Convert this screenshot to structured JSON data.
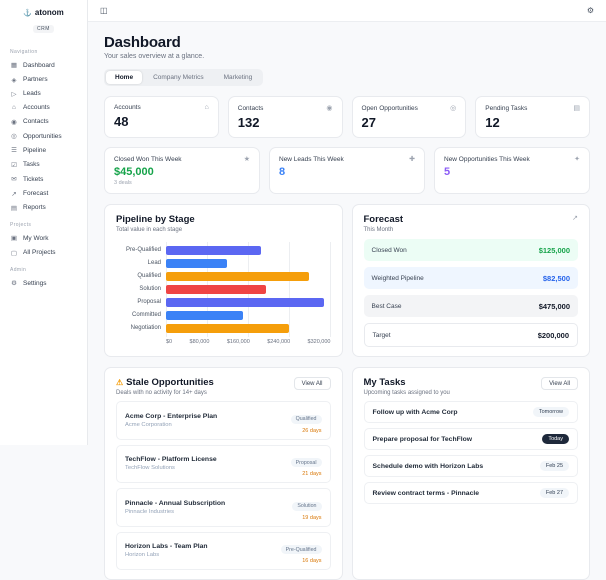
{
  "app": {
    "logo_text": "atonom",
    "logo_badge": "CRM",
    "logo_glyph": "⚓"
  },
  "topbar": {
    "toggle_glyph": "◫",
    "settings_glyph": "⚙"
  },
  "sidebar": {
    "sections": [
      {
        "label": "Navigation",
        "items": [
          {
            "label": "Dashboard",
            "icon": "dashboard-icon",
            "glyph": "▦"
          },
          {
            "label": "Partners",
            "icon": "partners-icon",
            "glyph": "◈"
          },
          {
            "label": "Leads",
            "icon": "leads-icon",
            "glyph": "▷"
          },
          {
            "label": "Accounts",
            "icon": "accounts-icon",
            "glyph": "⌂"
          },
          {
            "label": "Contacts",
            "icon": "contacts-icon",
            "glyph": "◉"
          },
          {
            "label": "Opportunities",
            "icon": "opportunities-icon",
            "glyph": "◎"
          },
          {
            "label": "Pipeline",
            "icon": "pipeline-icon",
            "glyph": "☰"
          },
          {
            "label": "Tasks",
            "icon": "tasks-icon",
            "glyph": "☑"
          },
          {
            "label": "Tickets",
            "icon": "tickets-icon",
            "glyph": "✉"
          },
          {
            "label": "Forecast",
            "icon": "forecast-icon",
            "glyph": "↗"
          },
          {
            "label": "Reports",
            "icon": "reports-icon",
            "glyph": "▤"
          }
        ]
      },
      {
        "label": "Projects",
        "items": [
          {
            "label": "My Work",
            "icon": "my-work-icon",
            "glyph": "▣"
          },
          {
            "label": "All Projects",
            "icon": "all-projects-icon",
            "glyph": "▢"
          }
        ]
      },
      {
        "label": "Admin",
        "items": [
          {
            "label": "Settings",
            "icon": "settings-icon",
            "glyph": "⚙"
          }
        ]
      }
    ]
  },
  "header": {
    "title": "Dashboard",
    "subtitle": "Your sales overview at a glance."
  },
  "tabs": [
    {
      "label": "Home",
      "active": true
    },
    {
      "label": "Company Metrics",
      "active": false
    },
    {
      "label": "Marketing",
      "active": false
    }
  ],
  "stats": [
    {
      "label": "Accounts",
      "value": "48",
      "icon": "building-icon",
      "glyph": "⌂"
    },
    {
      "label": "Contacts",
      "value": "132",
      "icon": "users-icon",
      "glyph": "◉"
    },
    {
      "label": "Open Opportunities",
      "value": "27",
      "icon": "target-icon",
      "glyph": "◎"
    },
    {
      "label": "Pending Tasks",
      "value": "12",
      "icon": "clipboard-icon",
      "glyph": "▤"
    }
  ],
  "week_stats": [
    {
      "label": "Closed Won This Week",
      "value": "$45,000",
      "note": "3 deals",
      "color": "#16a34a",
      "icon": "trophy-icon",
      "glyph": "★"
    },
    {
      "label": "New Leads This Week",
      "value": "8",
      "note": "",
      "color": "#3b82f6",
      "icon": "user-plus-icon",
      "glyph": "✚"
    },
    {
      "label": "New Opportunities This Week",
      "value": "5",
      "note": "",
      "color": "#8b5cf6",
      "icon": "sparkle-icon",
      "glyph": "✦"
    }
  ],
  "chart_data": {
    "type": "bar",
    "orientation": "horizontal",
    "title": "Pipeline by Stage",
    "subtitle": "Total value in each stage",
    "categories": [
      "Pre-Qualified",
      "Lead",
      "Qualified",
      "Solution",
      "Proposal",
      "Committed",
      "Negotiation"
    ],
    "values": [
      185000,
      120000,
      280000,
      195000,
      310000,
      150000,
      240000
    ],
    "colors": [
      "#5b67f2",
      "#3b82f6",
      "#f59e0b",
      "#ef4444",
      "#5b67f2",
      "#3b82f6",
      "#f59e0b"
    ],
    "x_ticks": [
      "$0",
      "$80,000",
      "$160,000",
      "$240,000",
      "$320,000"
    ],
    "xlim": [
      0,
      320000
    ],
    "grid": true,
    "legend": false
  },
  "forecast": {
    "title": "Forecast",
    "subtitle": "This Month",
    "icon": "trending-up-icon",
    "glyph": "↗",
    "rows": [
      {
        "label": "Closed Won",
        "value": "$125,000",
        "style": "green"
      },
      {
        "label": "Weighted Pipeline",
        "value": "$82,500",
        "style": "blue"
      },
      {
        "label": "Best Case",
        "value": "$475,000",
        "style": "gray"
      },
      {
        "label": "Target",
        "value": "$200,000",
        "style": "plain"
      }
    ]
  },
  "stale": {
    "title": "Stale Opportunities",
    "subtitle": "Deals with no activity for 14+ days",
    "view_all": "View All",
    "items": [
      {
        "title": "Acme Corp - Enterprise Plan",
        "company": "Acme Corporation",
        "stage": "Qualified",
        "days": "26 days"
      },
      {
        "title": "TechFlow - Platform License",
        "company": "TechFlow Solutions",
        "stage": "Proposal",
        "days": "21 days"
      },
      {
        "title": "Pinnacle - Annual Subscription",
        "company": "Pinnacle Industries",
        "stage": "Solution",
        "days": "19 days"
      },
      {
        "title": "Horizon Labs - Team Plan",
        "company": "Horizon Labs",
        "stage": "Pre-Qualified",
        "days": "16 days"
      }
    ]
  },
  "tasks": {
    "title": "My Tasks",
    "subtitle": "Upcoming tasks assigned to you",
    "view_all": "View All",
    "items": [
      {
        "title": "Follow up with Acme Corp",
        "due": "Tomorrow",
        "today": false
      },
      {
        "title": "Prepare proposal for TechFlow",
        "due": "Today",
        "today": true
      },
      {
        "title": "Schedule demo with Horizon Labs",
        "due": "Feb 25",
        "today": false
      },
      {
        "title": "Review contract terms - Pinnacle",
        "due": "Feb 27",
        "today": false
      }
    ]
  },
  "colors": {
    "accent_green": "#16a34a",
    "accent_blue": "#3b82f6",
    "accent_purple": "#8b5cf6",
    "days_orange": "#d97706"
  }
}
